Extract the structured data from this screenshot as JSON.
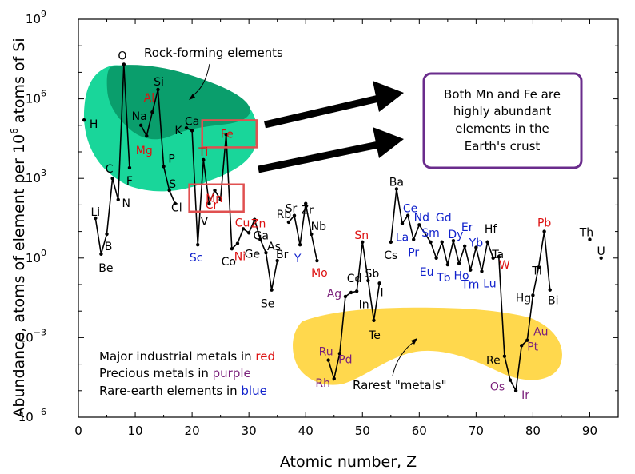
{
  "chart_data": {
    "type": "line",
    "title": "",
    "xlabel": "Atomic number, Z",
    "ylabel_main": "Abundance, atoms of element per 10",
    "ylabel_sup": "6",
    "ylabel_tail": " atoms of Si",
    "xlim": [
      0,
      95
    ],
    "ylim_log10": [
      -6,
      9
    ],
    "y_scale": "log",
    "x_ticks": [
      "0",
      "10",
      "20",
      "30",
      "40",
      "50",
      "60",
      "70",
      "80",
      "90"
    ],
    "y_ticks": [
      {
        "base": "10",
        "exp": "9",
        "value": 9
      },
      {
        "base": "10",
        "exp": "6",
        "value": 6
      },
      {
        "base": "10",
        "exp": "3",
        "value": 3
      },
      {
        "base": "10",
        "exp": "0",
        "value": 0
      },
      {
        "base": "10",
        "exp": "−3",
        "value": -3
      },
      {
        "base": "10",
        "exp": "−6",
        "value": -6
      }
    ],
    "colors": {
      "line": "#000000",
      "red": "#dd1111",
      "purple": "#7a1f7a",
      "blue": "#1122cc",
      "black": "#000000",
      "rock_region": "#19d69a",
      "rock_core": "#0a9e6c",
      "rare_region": "#ffd84d",
      "box": "#e05050",
      "callout_border": "#6a2c8c"
    },
    "series": [
      {
        "points": [
          {
            "z": 3,
            "log": 1.5
          },
          {
            "z": 4,
            "log": 0.15
          },
          {
            "z": 5,
            "log": 0.9
          },
          {
            "z": 6,
            "log": 3.0
          },
          {
            "z": 7,
            "log": 2.2
          },
          {
            "z": 8,
            "log": 7.3
          },
          {
            "z": 9,
            "log": 3.4
          }
        ]
      },
      {
        "points": [
          {
            "z": 11,
            "log": 5.0
          },
          {
            "z": 12,
            "log": 4.6
          },
          {
            "z": 13,
            "log": 5.5
          },
          {
            "z": 14,
            "log": 6.35
          },
          {
            "z": 15,
            "log": 3.45
          },
          {
            "z": 16,
            "log": 2.55
          },
          {
            "z": 17,
            "log": 2.05
          }
        ]
      },
      {
        "points": [
          {
            "z": 19,
            "log": 4.9
          },
          {
            "z": 20,
            "log": 4.8
          },
          {
            "z": 21,
            "log": 0.5
          },
          {
            "z": 22,
            "log": 3.7
          },
          {
            "z": 23,
            "log": 2.05
          },
          {
            "z": 24,
            "log": 2.55
          },
          {
            "z": 25,
            "log": 2.2
          },
          {
            "z": 26,
            "log": 4.65
          },
          {
            "z": 27,
            "log": 0.35
          },
          {
            "z": 28,
            "log": 0.55
          },
          {
            "z": 29,
            "log": 1.1
          },
          {
            "z": 30,
            "log": 0.95
          },
          {
            "z": 31,
            "log": 1.45
          },
          {
            "z": 32,
            "log": 0.7
          }
        ]
      },
      {
        "points": [
          {
            "z": 32,
            "log": 0.7
          },
          {
            "z": 33,
            "log": 0.2
          },
          {
            "z": 34,
            "log": -1.2
          },
          {
            "z": 35,
            "log": -0.1
          }
        ]
      },
      {
        "points": [
          {
            "z": 37,
            "log": 1.35
          },
          {
            "z": 38,
            "log": 1.6
          },
          {
            "z": 39,
            "log": 0.5
          },
          {
            "z": 40,
            "log": 2.05
          },
          {
            "z": 41,
            "log": 0.9
          },
          {
            "z": 42,
            "log": -0.1
          }
        ]
      },
      {
        "points": [
          {
            "z": 44,
            "log": -3.85
          },
          {
            "z": 45,
            "log": -4.55
          },
          {
            "z": 46,
            "log": -3.6
          },
          {
            "z": 47,
            "log": -1.45
          },
          {
            "z": 48,
            "log": -1.3
          },
          {
            "z": 49,
            "log": -1.25
          },
          {
            "z": 50,
            "log": 0.6
          },
          {
            "z": 51,
            "log": -0.85
          },
          {
            "z": 52,
            "log": -2.35
          },
          {
            "z": 53,
            "log": -0.95
          }
        ]
      },
      {
        "points": [
          {
            "z": 55,
            "log": 0.6
          },
          {
            "z": 56,
            "log": 2.6
          },
          {
            "z": 57,
            "log": 1.3
          },
          {
            "z": 58,
            "log": 1.6
          },
          {
            "z": 59,
            "log": 0.7
          },
          {
            "z": 60,
            "log": 1.25
          },
          {
            "z": 62,
            "log": 0.6
          },
          {
            "z": 63,
            "log": 0.0
          },
          {
            "z": 64,
            "log": 0.6
          },
          {
            "z": 65,
            "log": -0.25
          },
          {
            "z": 66,
            "log": 0.65
          },
          {
            "z": 67,
            "log": -0.2
          },
          {
            "z": 68,
            "log": 0.45
          },
          {
            "z": 69,
            "log": -0.45
          },
          {
            "z": 70,
            "log": 0.4
          },
          {
            "z": 71,
            "log": -0.5
          },
          {
            "z": 72,
            "log": 0.6
          },
          {
            "z": 73,
            "log": 0.0
          },
          {
            "z": 74,
            "log": 0.05
          },
          {
            "z": 75,
            "log": -3.7
          },
          {
            "z": 76,
            "log": -4.6
          },
          {
            "z": 77,
            "log": -5.0
          },
          {
            "z": 78,
            "log": -3.3
          },
          {
            "z": 79,
            "log": -3.1
          },
          {
            "z": 80,
            "log": -1.4
          },
          {
            "z": 81,
            "log": -0.35
          },
          {
            "z": 82,
            "log": 1.0
          },
          {
            "z": 83,
            "log": -1.2
          }
        ]
      }
    ],
    "isolated_points": [
      {
        "z": 1,
        "log": 5.2
      },
      {
        "z": 90,
        "log": 0.7
      },
      {
        "z": 92,
        "log": 0.0
      }
    ],
    "element_labels": [
      {
        "symbol": "H",
        "z": 1,
        "log": 5.2,
        "dx": 12,
        "dy": 5,
        "color": "black"
      },
      {
        "symbol": "Li",
        "z": 3,
        "log": 1.5,
        "dx": 0,
        "dy": -8,
        "color": "black"
      },
      {
        "symbol": "Be",
        "z": 4,
        "log": 0.15,
        "dx": 6,
        "dy": 17,
        "color": "black"
      },
      {
        "symbol": "B",
        "z": 5,
        "log": 0.9,
        "dx": 2,
        "dy": 15,
        "color": "black"
      },
      {
        "symbol": "C",
        "z": 6,
        "log": 3.0,
        "dx": -4,
        "dy": -12,
        "color": "black"
      },
      {
        "symbol": "N",
        "z": 7,
        "log": 2.2,
        "dx": 10,
        "dy": 4,
        "color": "black"
      },
      {
        "symbol": "O",
        "z": 8,
        "log": 7.3,
        "dx": -2,
        "dy": -11,
        "color": "black"
      },
      {
        "symbol": "F",
        "z": 9,
        "log": 3.4,
        "dx": 0,
        "dy": 16,
        "color": "black"
      },
      {
        "symbol": "Na",
        "z": 11,
        "log": 5.0,
        "dx": -2,
        "dy": -12,
        "color": "black"
      },
      {
        "symbol": "Mg",
        "z": 12,
        "log": 4.6,
        "dx": -3,
        "dy": 18,
        "color": "red"
      },
      {
        "symbol": "Al",
        "z": 13,
        "log": 5.5,
        "dx": -4,
        "dy": -18,
        "color": "red"
      },
      {
        "symbol": "Si",
        "z": 14,
        "log": 6.35,
        "dx": 1,
        "dy": -10,
        "color": "black"
      },
      {
        "symbol": "P",
        "z": 15,
        "log": 3.45,
        "dx": 10,
        "dy": -10,
        "color": "black"
      },
      {
        "symbol": "S",
        "z": 16,
        "log": 2.55,
        "dx": 4,
        "dy": -8,
        "color": "black"
      },
      {
        "symbol": "Cl",
        "z": 17,
        "log": 2.05,
        "dx": 2,
        "dy": 5,
        "color": "black"
      },
      {
        "symbol": "K",
        "z": 19,
        "log": 4.9,
        "dx": -10,
        "dy": 3,
        "color": "black"
      },
      {
        "symbol": "Ca",
        "z": 20,
        "log": 4.8,
        "dx": 0,
        "dy": -12,
        "color": "black"
      },
      {
        "symbol": "Sc",
        "z": 21,
        "log": 0.5,
        "dx": -2,
        "dy": 16,
        "color": "blue"
      },
      {
        "symbol": "Ti",
        "z": 22,
        "log": 3.7,
        "dx": 0,
        "dy": -10,
        "color": "red"
      },
      {
        "symbol": "V",
        "z": 23,
        "log": 2.05,
        "dx": -6,
        "dy": 22,
        "color": "black"
      },
      {
        "symbol": "Cr",
        "z": 24,
        "log": 2.55,
        "dx": -4,
        "dy": 18,
        "color": "red"
      },
      {
        "symbol": "Mn",
        "z": 25,
        "log": 2.2,
        "dx": -8,
        "dy": -2,
        "color": "red"
      },
      {
        "symbol": "Fe",
        "z": 26,
        "log": 4.65,
        "dx": 1,
        "dy": -1,
        "color": "red"
      },
      {
        "symbol": "Co",
        "z": 27,
        "log": 0.35,
        "dx": -4,
        "dy": 16,
        "color": "black"
      },
      {
        "symbol": "Ni",
        "z": 28,
        "log": 0.55,
        "dx": 3,
        "dy": 16,
        "color": "red"
      },
      {
        "symbol": "Cu",
        "z": 29,
        "log": 1.1,
        "dx": -1,
        "dy": -8,
        "color": "red"
      },
      {
        "symbol": "Zn",
        "z": 30,
        "log": 0.95,
        "dx": 12,
        "dy": -12,
        "color": "red"
      },
      {
        "symbol": "Ga",
        "z": 31,
        "log": 1.45,
        "dx": 8,
        "dy": 20,
        "color": "black"
      },
      {
        "symbol": "Ge",
        "z": 32,
        "log": 0.7,
        "dx": -10,
        "dy": 18,
        "color": "black"
      },
      {
        "symbol": "As",
        "z": 33,
        "log": 0.2,
        "dx": 10,
        "dy": -8,
        "color": "black"
      },
      {
        "symbol": "Se",
        "z": 34,
        "log": -1.2,
        "dx": -5,
        "dy": 17,
        "color": "black"
      },
      {
        "symbol": "Br",
        "z": 35,
        "log": -0.1,
        "dx": 6,
        "dy": -8,
        "color": "black"
      },
      {
        "symbol": "Rb",
        "z": 37,
        "log": 1.35,
        "dx": -6,
        "dy": -10,
        "color": "black"
      },
      {
        "symbol": "Sr",
        "z": 38,
        "log": 1.6,
        "dx": -4,
        "dy": -9,
        "color": "black"
      },
      {
        "symbol": "Y",
        "z": 39,
        "log": 0.5,
        "dx": -3,
        "dy": 17,
        "color": "blue"
      },
      {
        "symbol": "Zr",
        "z": 40,
        "log": 2.05,
        "dx": 2,
        "dy": 8,
        "color": "black"
      },
      {
        "symbol": "Nb",
        "z": 41,
        "log": 0.9,
        "dx": 9,
        "dy": -10,
        "color": "black"
      },
      {
        "symbol": "Mo",
        "z": 42,
        "log": -0.1,
        "dx": 3,
        "dy": 15,
        "color": "red"
      },
      {
        "symbol": "Ru",
        "z": 44,
        "log": -3.85,
        "dx": -3,
        "dy": -11,
        "color": "purple"
      },
      {
        "symbol": "Rh",
        "z": 45,
        "log": -4.55,
        "dx": -14,
        "dy": 5,
        "color": "purple"
      },
      {
        "symbol": "Pd",
        "z": 46,
        "log": -3.6,
        "dx": 7,
        "dy": 7,
        "color": "purple"
      },
      {
        "symbol": "Ag",
        "z": 47,
        "log": -1.45,
        "dx": -14,
        "dy": -4,
        "color": "purple"
      },
      {
        "symbol": "Cd",
        "z": 48,
        "log": -1.3,
        "dx": 4,
        "dy": -18,
        "color": "black"
      },
      {
        "symbol": "In",
        "z": 49,
        "log": -1.25,
        "dx": 9,
        "dy": 16,
        "color": "black"
      },
      {
        "symbol": "Sn",
        "z": 50,
        "log": 0.6,
        "dx": -1,
        "dy": -9,
        "color": "red"
      },
      {
        "symbol": "Sb",
        "z": 51,
        "log": -0.85,
        "dx": 5,
        "dy": -9,
        "color": "black"
      },
      {
        "symbol": "Te",
        "z": 52,
        "log": -2.35,
        "dx": 1,
        "dy": 18,
        "color": "black"
      },
      {
        "symbol": "I",
        "z": 53,
        "log": -0.95,
        "dx": 3,
        "dy": 11,
        "color": "black"
      },
      {
        "symbol": "Cs",
        "z": 55,
        "log": 0.6,
        "dx": 0,
        "dy": 16,
        "color": "black"
      },
      {
        "symbol": "Ba",
        "z": 56,
        "log": 2.6,
        "dx": 0,
        "dy": -9,
        "color": "black"
      },
      {
        "symbol": "La",
        "z": 57,
        "log": 1.3,
        "dx": 0,
        "dy": 17,
        "color": "blue"
      },
      {
        "symbol": "Ce",
        "z": 58,
        "log": 1.6,
        "dx": 3,
        "dy": -9,
        "color": "blue"
      },
      {
        "symbol": "Pr",
        "z": 59,
        "log": 0.7,
        "dx": 0,
        "dy": 16,
        "color": "blue"
      },
      {
        "symbol": "Nd",
        "z": 60,
        "log": 1.25,
        "dx": 3,
        "dy": -10,
        "color": "blue"
      },
      {
        "symbol": "Sm",
        "z": 62,
        "log": 0.6,
        "dx": 0,
        "dy": -12,
        "color": "blue"
      },
      {
        "symbol": "Gd",
        "z": 64,
        "log": 0.6,
        "dx": 2,
        "dy": -31,
        "color": "blue"
      },
      {
        "symbol": "Eu",
        "z": 63,
        "log": 0.0,
        "dx": -12,
        "dy": 17,
        "color": "blue"
      },
      {
        "symbol": "Tb",
        "z": 65,
        "log": -0.25,
        "dx": -5,
        "dy": 16,
        "color": "blue"
      },
      {
        "symbol": "Dy",
        "z": 66,
        "log": 0.65,
        "dx": 3,
        "dy": -8,
        "color": "blue"
      },
      {
        "symbol": "Ho",
        "z": 67,
        "log": -0.2,
        "dx": 3,
        "dy": 15,
        "color": "blue"
      },
      {
        "symbol": "Er",
        "z": 68,
        "log": 0.45,
        "dx": 3,
        "dy": -24,
        "color": "blue"
      },
      {
        "symbol": "Tm",
        "z": 69,
        "log": -0.45,
        "dx": 0,
        "dy": 18,
        "color": "blue"
      },
      {
        "symbol": "Yb",
        "z": 70,
        "log": 0.4,
        "dx": 0,
        "dy": -6,
        "color": "blue"
      },
      {
        "symbol": "Lu",
        "z": 71,
        "log": -0.5,
        "dx": 10,
        "dy": 15,
        "color": "blue"
      },
      {
        "symbol": "Hf",
        "z": 72,
        "log": 0.6,
        "dx": 4,
        "dy": -17,
        "color": "black"
      },
      {
        "symbol": "Ta",
        "z": 73,
        "log": 0.0,
        "dx": 6,
        "dy": -5,
        "color": "black"
      },
      {
        "symbol": "W",
        "z": 74,
        "log": 0.05,
        "dx": 7,
        "dy": 10,
        "color": "red"
      },
      {
        "symbol": "Re",
        "z": 75,
        "log": -3.7,
        "dx": -14,
        "dy": 5,
        "color": "black"
      },
      {
        "symbol": "Os",
        "z": 76,
        "log": -4.6,
        "dx": -16,
        "dy": 8,
        "color": "purple"
      },
      {
        "symbol": "Ir",
        "z": 77,
        "log": -5.0,
        "dx": 12,
        "dy": 5,
        "color": "purple"
      },
      {
        "symbol": "Pt",
        "z": 78,
        "log": -3.3,
        "dx": 14,
        "dy": 1,
        "color": "purple"
      },
      {
        "symbol": "Au",
        "z": 79,
        "log": -3.1,
        "dx": 17,
        "dy": -11,
        "color": "purple"
      },
      {
        "symbol": "Hg",
        "z": 80,
        "log": -1.4,
        "dx": -12,
        "dy": 3,
        "color": "black"
      },
      {
        "symbol": "Tl",
        "z": 81,
        "log": -0.35,
        "dx": -2,
        "dy": 4,
        "color": "black"
      },
      {
        "symbol": "Pb",
        "z": 82,
        "log": 1.0,
        "dx": 0,
        "dy": -11,
        "color": "red"
      },
      {
        "symbol": "Bi",
        "z": 83,
        "log": -1.2,
        "dx": 4,
        "dy": 13,
        "color": "black"
      },
      {
        "symbol": "Th",
        "z": 90,
        "log": 0.7,
        "dx": -4,
        "dy": -9,
        "color": "black"
      },
      {
        "symbol": "U",
        "z": 92,
        "log": 0.0,
        "dx": 0,
        "dy": -9,
        "color": "black"
      }
    ],
    "annotations": {
      "rock_forming": "Rock-forming elements",
      "rarest_metals": "Rarest \"metals\"",
      "legend_line1_prefix": "Major industrial metals in ",
      "legend_line1_word": "red",
      "legend_line2_prefix": "Precious metals in ",
      "legend_line2_word": "purple",
      "legend_line3_prefix": "Rare-earth elements in ",
      "legend_line3_word": "blue",
      "callout_lines": [
        "Both Mn and Fe are",
        "highly abundant",
        "elements in the",
        "Earth's crust"
      ]
    }
  }
}
